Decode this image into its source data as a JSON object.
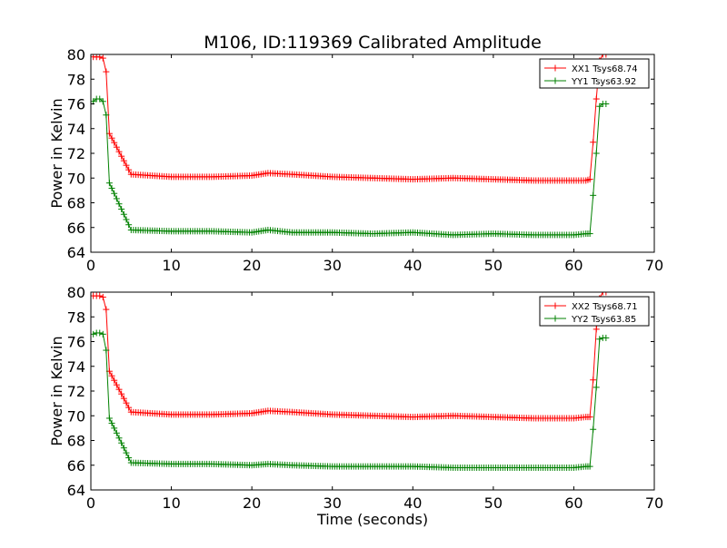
{
  "figure": {
    "title": "M106, ID:119369 Calibrated Amplitude"
  },
  "colors": {
    "xx": "#ff0000",
    "yy": "#008000",
    "axes": "#000000",
    "background": "#ffffff"
  },
  "chart_data": [
    {
      "type": "line",
      "title": "M106, ID:119369 Calibrated Amplitude",
      "xlabel": "",
      "ylabel": "Power in Kelvin",
      "xlim": [
        0,
        70
      ],
      "ylim": [
        64,
        80
      ],
      "xticks": [
        0,
        10,
        20,
        30,
        40,
        50,
        60,
        70
      ],
      "yticks": [
        64,
        66,
        68,
        70,
        72,
        74,
        76,
        78,
        80
      ],
      "grid": false,
      "legend_position": "top-right",
      "series": [
        {
          "name": "XX1 Tsys68.74",
          "color": "#ff0000",
          "x": [
            0.3,
            0.7,
            1.1,
            1.5,
            1.9,
            2.3,
            5,
            10,
            15,
            20,
            22,
            25,
            30,
            35,
            40,
            45,
            50,
            55,
            60,
            61.5,
            62.0,
            62.4,
            62.8,
            63.2,
            63.6,
            64.0
          ],
          "y": [
            79.8,
            79.8,
            79.8,
            79.7,
            78.6,
            73.6,
            70.3,
            70.1,
            70.1,
            70.2,
            70.4,
            70.3,
            70.1,
            70.0,
            69.9,
            70.0,
            69.9,
            69.8,
            69.8,
            69.8,
            69.9,
            72.9,
            76.4,
            79.5,
            80.0,
            80.0
          ]
        },
        {
          "name": "YY1 Tsys63.92",
          "color": "#008000",
          "x": [
            0.3,
            0.7,
            1.1,
            1.5,
            1.9,
            2.3,
            5,
            10,
            15,
            20,
            22,
            25,
            30,
            35,
            40,
            45,
            50,
            55,
            60,
            61.5,
            62.0,
            62.4,
            62.8,
            63.2,
            63.6,
            64.0
          ],
          "y": [
            76.2,
            76.4,
            76.4,
            76.2,
            75.1,
            69.6,
            65.8,
            65.7,
            65.7,
            65.6,
            65.8,
            65.6,
            65.6,
            65.5,
            65.6,
            65.4,
            65.5,
            65.4,
            65.4,
            65.5,
            65.5,
            68.6,
            72.0,
            75.8,
            76.0,
            76.0
          ]
        }
      ]
    },
    {
      "type": "line",
      "title": "",
      "xlabel": "Time (seconds)",
      "ylabel": "Power in Kelvin",
      "xlim": [
        0,
        70
      ],
      "ylim": [
        64,
        80
      ],
      "xticks": [
        0,
        10,
        20,
        30,
        40,
        50,
        60,
        70
      ],
      "yticks": [
        64,
        66,
        68,
        70,
        72,
        74,
        76,
        78,
        80
      ],
      "grid": false,
      "legend_position": "top-right",
      "series": [
        {
          "name": "XX2 Tsys68.71",
          "color": "#ff0000",
          "x": [
            0.3,
            0.7,
            1.1,
            1.5,
            1.9,
            2.3,
            5,
            10,
            15,
            20,
            22,
            25,
            30,
            35,
            40,
            45,
            50,
            55,
            60,
            61.5,
            62.0,
            62.4,
            62.8,
            63.2,
            63.6,
            64.0
          ],
          "y": [
            79.7,
            79.7,
            79.7,
            79.6,
            78.6,
            73.6,
            70.3,
            70.1,
            70.1,
            70.2,
            70.4,
            70.3,
            70.1,
            70.0,
            69.9,
            70.0,
            69.9,
            69.8,
            69.8,
            69.9,
            69.9,
            72.9,
            77.0,
            79.5,
            80.0,
            80.0
          ]
        },
        {
          "name": "YY2 Tsys63.85",
          "color": "#008000",
          "x": [
            0.3,
            0.7,
            1.1,
            1.5,
            1.9,
            2.3,
            5,
            10,
            15,
            20,
            22,
            25,
            30,
            35,
            40,
            45,
            50,
            55,
            60,
            61.5,
            62.0,
            62.4,
            62.8,
            63.2,
            63.6,
            64.0
          ],
          "y": [
            76.6,
            76.7,
            76.7,
            76.6,
            75.3,
            69.8,
            66.2,
            66.1,
            66.1,
            66.0,
            66.1,
            66.0,
            65.9,
            65.9,
            65.9,
            65.8,
            65.8,
            65.8,
            65.8,
            65.9,
            65.9,
            68.9,
            72.3,
            76.2,
            76.3,
            76.3
          ]
        }
      ]
    }
  ]
}
